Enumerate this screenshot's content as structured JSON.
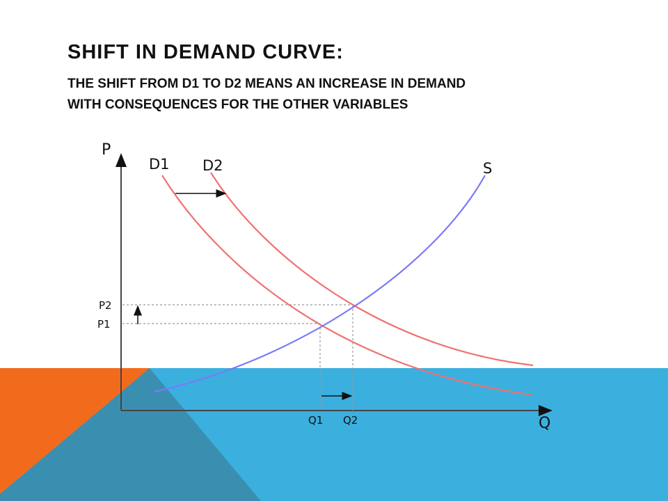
{
  "slide": {
    "title": "SHIFT IN DEMAND CURVE:",
    "subtitle_line1": "THE SHIFT FROM D1 TO D2 MEANS AN INCREASE IN DEMAND",
    "subtitle_line2": "WITH CONSEQUENCES FOR THE OTHER VARIABLES"
  },
  "colors": {
    "demand": "#f07070",
    "supply": "#7a7af5",
    "orange": "#f26b1d",
    "blue": "#3bb0df",
    "dark_overlap": "#3a8fb0"
  },
  "diagram": {
    "axis_p": "P",
    "axis_q": "Q",
    "curve_d1": "D1",
    "curve_d2": "D2",
    "curve_s": "S",
    "price_1": "P1",
    "price_2": "P2",
    "qty_1": "Q1",
    "qty_2": "Q2"
  }
}
